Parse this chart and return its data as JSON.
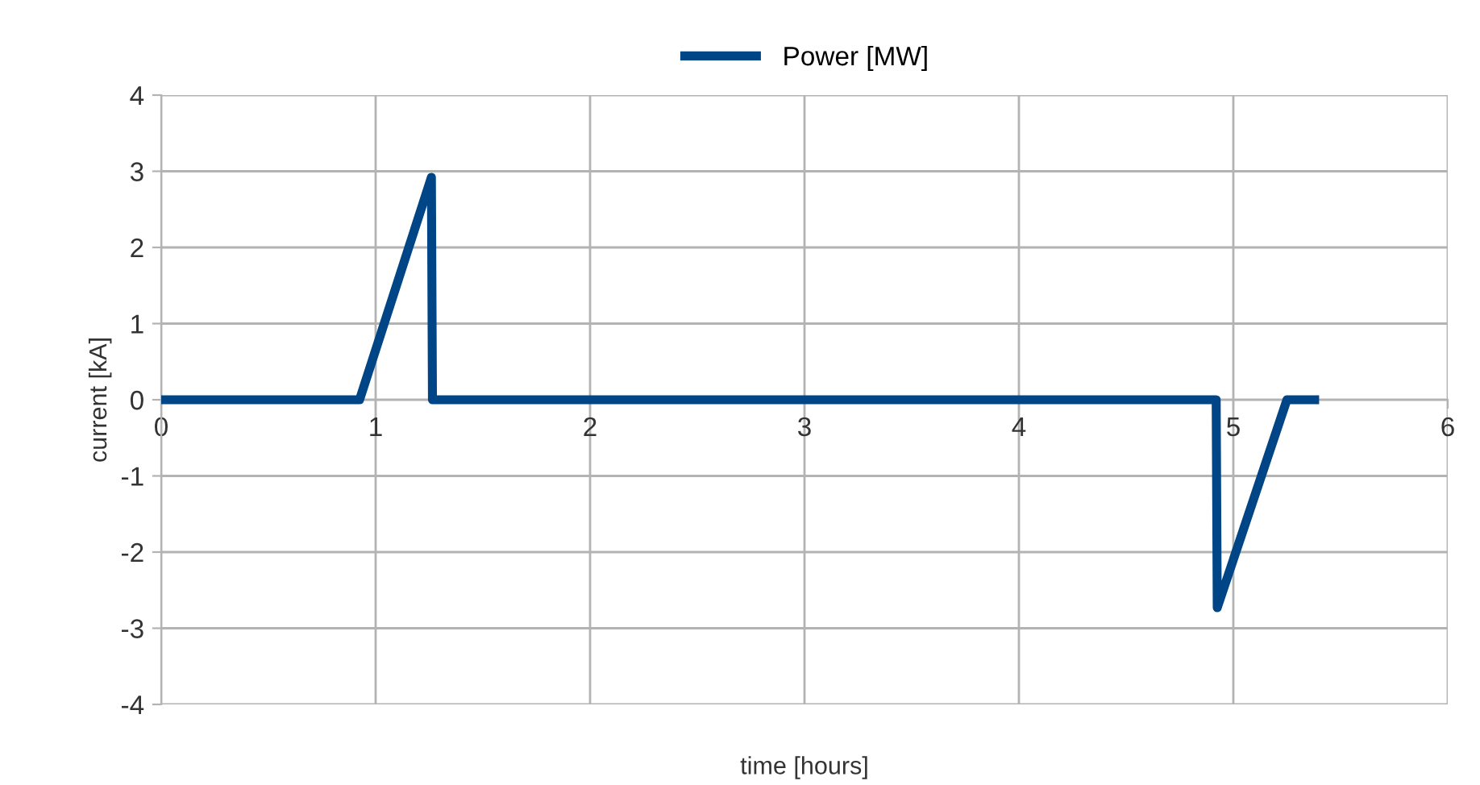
{
  "chart_data": {
    "type": "line",
    "xlabel": "time [hours]",
    "ylabel": "current [kA]",
    "series": [
      {
        "name": "Power [MW]",
        "color": "#004586",
        "x": [
          0,
          0.925,
          1.26,
          1.265,
          4.92,
          4.925,
          5.25,
          5.4
        ],
        "values": [
          0,
          0,
          2.92,
          0,
          0,
          -2.73,
          0,
          0
        ]
      }
    ],
    "xlim": [
      0,
      6
    ],
    "xticks": [
      0,
      1,
      2,
      3,
      4,
      5,
      6
    ],
    "ylim": [
      -4,
      4
    ],
    "yticks": [
      -4,
      -3,
      -2,
      -1,
      0,
      1,
      2,
      3,
      4
    ],
    "grid": true,
    "legend": "top",
    "marker": "none",
    "line_style": "solid"
  }
}
